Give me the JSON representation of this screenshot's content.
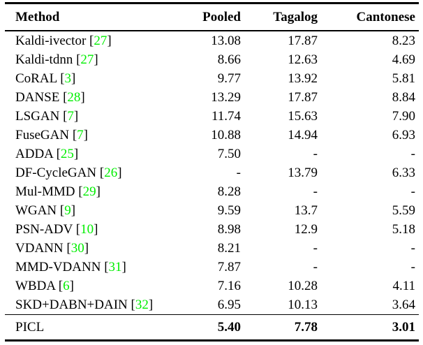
{
  "colors": {
    "background": "#ffffff",
    "text": "#000000",
    "citation": "#00ee00"
  },
  "table": {
    "columns": [
      "Method",
      "Pooled",
      "Tagalog",
      "Cantonese"
    ],
    "rows": [
      {
        "method": "Kaldi-ivector",
        "cite": "27",
        "pooled": "13.08",
        "tagalog": "17.87",
        "cantonese": "8.23"
      },
      {
        "method": "Kaldi-tdnn",
        "cite": "27",
        "pooled": "8.66",
        "tagalog": "12.63",
        "cantonese": "4.69"
      },
      {
        "method": "CoRAL",
        "cite": "3",
        "pooled": "9.77",
        "tagalog": "13.92",
        "cantonese": "5.81"
      },
      {
        "method": "DANSE",
        "cite": "28",
        "pooled": "13.29",
        "tagalog": "17.87",
        "cantonese": "8.84"
      },
      {
        "method": "LSGAN",
        "cite": "7",
        "pooled": "11.74",
        "tagalog": "15.63",
        "cantonese": "7.90"
      },
      {
        "method": "FuseGAN",
        "cite": "7",
        "pooled": "10.88",
        "tagalog": "14.94",
        "cantonese": "6.93"
      },
      {
        "method": "ADDA",
        "cite": "25",
        "pooled": "7.50",
        "tagalog": "-",
        "cantonese": "-"
      },
      {
        "method": "DF-CycleGAN",
        "cite": "26",
        "pooled": "-",
        "tagalog": "13.79",
        "cantonese": "6.33"
      },
      {
        "method": "Mul-MMD",
        "cite": "29",
        "pooled": "8.28",
        "tagalog": "-",
        "cantonese": "-"
      },
      {
        "method": "WGAN",
        "cite": "9",
        "pooled": "9.59",
        "tagalog": "13.7",
        "cantonese": "5.59"
      },
      {
        "method": "PSN-ADV",
        "cite": "10",
        "pooled": "8.98",
        "tagalog": "12.9",
        "cantonese": "5.18"
      },
      {
        "method": "VDANN",
        "cite": "30",
        "pooled": "8.21",
        "tagalog": "-",
        "cantonese": "-"
      },
      {
        "method": "MMD-VDANN",
        "cite": "31",
        "pooled": "7.87",
        "tagalog": "-",
        "cantonese": "-"
      },
      {
        "method": "WBDA",
        "cite": "6",
        "pooled": "7.16",
        "tagalog": "10.28",
        "cantonese": "4.11"
      },
      {
        "method": "SKD+DABN+DAIN",
        "cite": "32",
        "pooled": "6.95",
        "tagalog": "10.13",
        "cantonese": "3.64"
      }
    ],
    "final_row": {
      "method": "PICL",
      "pooled": "5.40",
      "tagalog": "7.78",
      "cantonese": "3.01"
    },
    "citation_open_bracket": "[",
    "citation_close_bracket": "]"
  }
}
